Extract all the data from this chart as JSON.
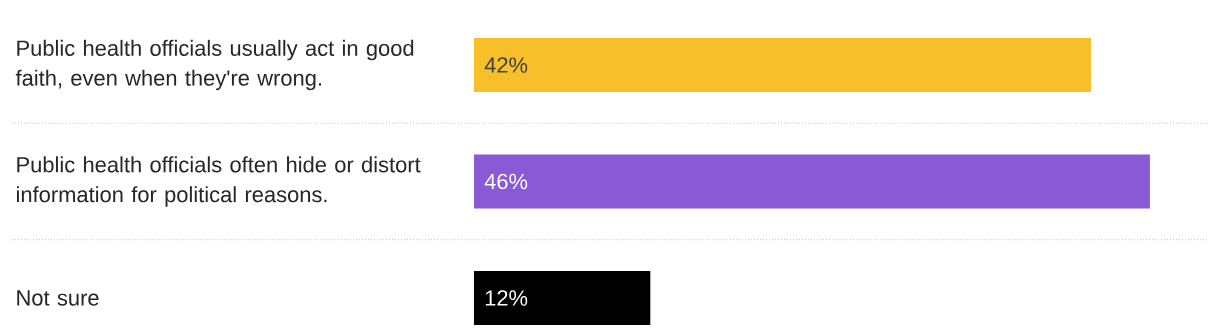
{
  "chart_data": {
    "type": "bar",
    "orientation": "horizontal",
    "categories": [
      "Public health officials usually act in good faith, even when they're wrong.",
      "Public health officials often hide or distort information for political reasons.",
      "Not sure"
    ],
    "values": [
      42,
      46,
      12
    ],
    "colors": [
      "#f7c02b",
      "#8a5ad6",
      "#000000"
    ],
    "value_labels": [
      "42%",
      "46%",
      "12%"
    ]
  }
}
